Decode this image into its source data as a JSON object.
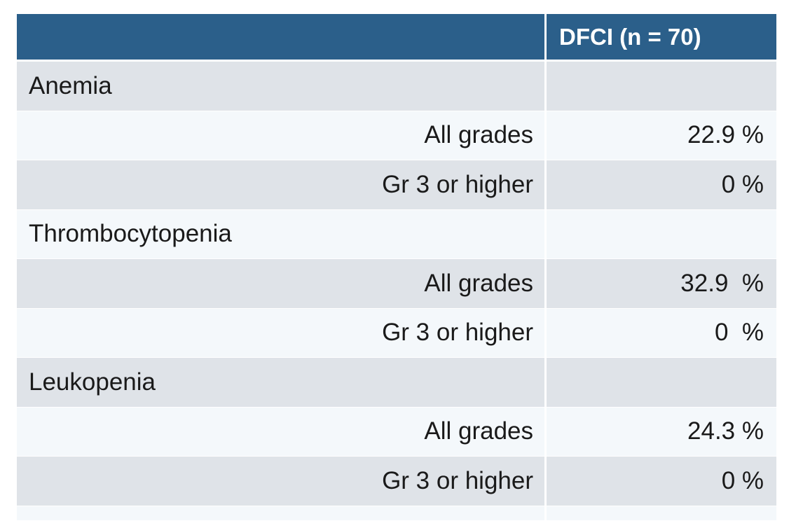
{
  "header": {
    "label_col": "",
    "value_col": "DFCI (n = 70)"
  },
  "rows": [
    {
      "label": "Anemia",
      "value": ""
    },
    {
      "label": "All grades",
      "value": "22.9 %"
    },
    {
      "label": "Gr 3 or higher",
      "value": "0 %"
    },
    {
      "label": "Thrombocytopenia",
      "value": ""
    },
    {
      "label": "All grades",
      "value": "32.9  %"
    },
    {
      "label": "Gr 3 or higher",
      "value": "0  %"
    },
    {
      "label": "Leukopenia",
      "value": ""
    },
    {
      "label": "All grades",
      "value": "24.3 %"
    },
    {
      "label": "Gr 3 or higher",
      "value": "0 %"
    }
  ],
  "colors": {
    "header_bg": "#2b5f8a",
    "row_dark": "#dfe3e8",
    "row_light": "#f4f8fb"
  }
}
